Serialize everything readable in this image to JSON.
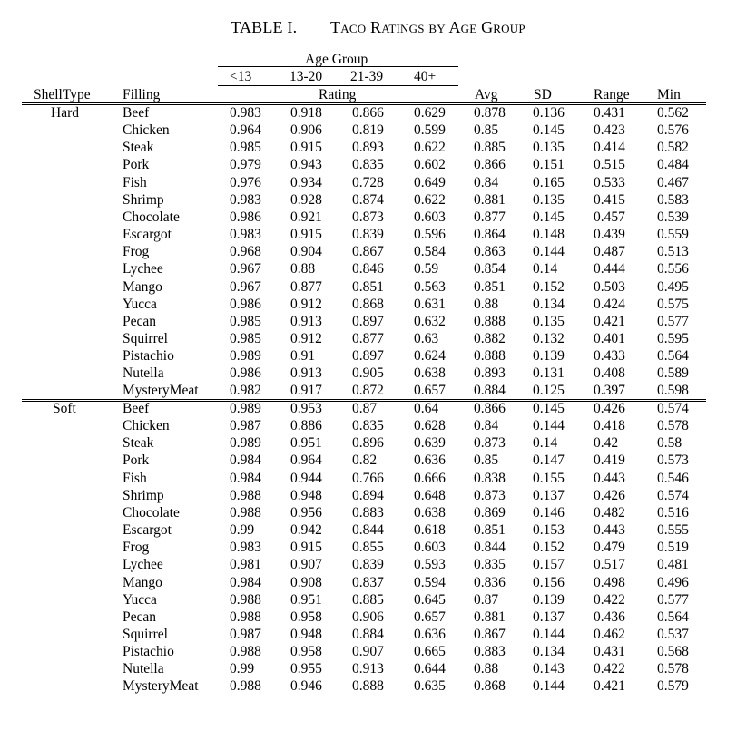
{
  "caption": {
    "number": "TABLE I.",
    "title": "Taco Ratings by Age Group"
  },
  "header": {
    "group_label": "Age Group",
    "age_groups": [
      "<13",
      "13-20",
      "21-39",
      "40+"
    ],
    "shell_type": "ShellType",
    "filling": "Filling",
    "rating": "Rating",
    "stats": [
      "Avg",
      "SD",
      "Range",
      "Min"
    ]
  },
  "groups": [
    {
      "shell": "Hard",
      "rows": [
        {
          "filling": "Beef",
          "vals": [
            "0.983",
            "0.918",
            "0.866",
            "0.629",
            "0.878",
            "0.136",
            "0.431",
            "0.562"
          ]
        },
        {
          "filling": "Chicken",
          "vals": [
            "0.964",
            "0.906",
            "0.819",
            "0.599",
            "0.85",
            "0.145",
            "0.423",
            "0.576"
          ]
        },
        {
          "filling": "Steak",
          "vals": [
            "0.985",
            "0.915",
            "0.893",
            "0.622",
            "0.885",
            "0.135",
            "0.414",
            "0.582"
          ]
        },
        {
          "filling": "Pork",
          "vals": [
            "0.979",
            "0.943",
            "0.835",
            "0.602",
            "0.866",
            "0.151",
            "0.515",
            "0.484"
          ]
        },
        {
          "filling": "Fish",
          "vals": [
            "0.976",
            "0.934",
            "0.728",
            "0.649",
            "0.84",
            "0.165",
            "0.533",
            "0.467"
          ]
        },
        {
          "filling": "Shrimp",
          "vals": [
            "0.983",
            "0.928",
            "0.874",
            "0.622",
            "0.881",
            "0.135",
            "0.415",
            "0.583"
          ]
        },
        {
          "filling": "Chocolate",
          "vals": [
            "0.986",
            "0.921",
            "0.873",
            "0.603",
            "0.877",
            "0.145",
            "0.457",
            "0.539"
          ]
        },
        {
          "filling": "Escargot",
          "vals": [
            "0.983",
            "0.915",
            "0.839",
            "0.596",
            "0.864",
            "0.148",
            "0.439",
            "0.559"
          ]
        },
        {
          "filling": "Frog",
          "vals": [
            "0.968",
            "0.904",
            "0.867",
            "0.584",
            "0.863",
            "0.144",
            "0.487",
            "0.513"
          ]
        },
        {
          "filling": "Lychee",
          "vals": [
            "0.967",
            "0.88",
            "0.846",
            "0.59",
            "0.854",
            "0.14",
            "0.444",
            "0.556"
          ]
        },
        {
          "filling": "Mango",
          "vals": [
            "0.967",
            "0.877",
            "0.851",
            "0.563",
            "0.851",
            "0.152",
            "0.503",
            "0.495"
          ]
        },
        {
          "filling": "Yucca",
          "vals": [
            "0.986",
            "0.912",
            "0.868",
            "0.631",
            "0.88",
            "0.134",
            "0.424",
            "0.575"
          ]
        },
        {
          "filling": "Pecan",
          "vals": [
            "0.985",
            "0.913",
            "0.897",
            "0.632",
            "0.888",
            "0.135",
            "0.421",
            "0.577"
          ]
        },
        {
          "filling": "Squirrel",
          "vals": [
            "0.985",
            "0.912",
            "0.877",
            "0.63",
            "0.882",
            "0.132",
            "0.401",
            "0.595"
          ]
        },
        {
          "filling": "Pistachio",
          "vals": [
            "0.989",
            "0.91",
            "0.897",
            "0.624",
            "0.888",
            "0.139",
            "0.433",
            "0.564"
          ]
        },
        {
          "filling": "Nutella",
          "vals": [
            "0.986",
            "0.913",
            "0.905",
            "0.638",
            "0.893",
            "0.131",
            "0.408",
            "0.589"
          ]
        },
        {
          "filling": "MysteryMeat",
          "vals": [
            "0.982",
            "0.917",
            "0.872",
            "0.657",
            "0.884",
            "0.125",
            "0.397",
            "0.598"
          ]
        }
      ]
    },
    {
      "shell": "Soft",
      "rows": [
        {
          "filling": "Beef",
          "vals": [
            "0.989",
            "0.953",
            "0.87",
            "0.64",
            "0.866",
            "0.145",
            "0.426",
            "0.574"
          ]
        },
        {
          "filling": "Chicken",
          "vals": [
            "0.987",
            "0.886",
            "0.835",
            "0.628",
            "0.84",
            "0.144",
            "0.418",
            "0.578"
          ]
        },
        {
          "filling": "Steak",
          "vals": [
            "0.989",
            "0.951",
            "0.896",
            "0.639",
            "0.873",
            "0.14",
            "0.42",
            "0.58"
          ]
        },
        {
          "filling": "Pork",
          "vals": [
            "0.984",
            "0.964",
            "0.82",
            "0.636",
            "0.85",
            "0.147",
            "0.419",
            "0.573"
          ]
        },
        {
          "filling": "Fish",
          "vals": [
            "0.984",
            "0.944",
            "0.766",
            "0.666",
            "0.838",
            "0.155",
            "0.443",
            "0.546"
          ]
        },
        {
          "filling": "Shrimp",
          "vals": [
            "0.988",
            "0.948",
            "0.894",
            "0.648",
            "0.873",
            "0.137",
            "0.426",
            "0.574"
          ]
        },
        {
          "filling": "Chocolate",
          "vals": [
            "0.988",
            "0.956",
            "0.883",
            "0.638",
            "0.869",
            "0.146",
            "0.482",
            "0.516"
          ]
        },
        {
          "filling": "Escargot",
          "vals": [
            "0.99",
            "0.942",
            "0.844",
            "0.618",
            "0.851",
            "0.153",
            "0.443",
            "0.555"
          ]
        },
        {
          "filling": "Frog",
          "vals": [
            "0.983",
            "0.915",
            "0.855",
            "0.603",
            "0.844",
            "0.152",
            "0.479",
            "0.519"
          ]
        },
        {
          "filling": "Lychee",
          "vals": [
            "0.981",
            "0.907",
            "0.839",
            "0.593",
            "0.835",
            "0.157",
            "0.517",
            "0.481"
          ]
        },
        {
          "filling": "Mango",
          "vals": [
            "0.984",
            "0.908",
            "0.837",
            "0.594",
            "0.836",
            "0.156",
            "0.498",
            "0.496"
          ]
        },
        {
          "filling": "Yucca",
          "vals": [
            "0.988",
            "0.951",
            "0.885",
            "0.645",
            "0.87",
            "0.139",
            "0.422",
            "0.577"
          ]
        },
        {
          "filling": "Pecan",
          "vals": [
            "0.988",
            "0.958",
            "0.906",
            "0.657",
            "0.881",
            "0.137",
            "0.436",
            "0.564"
          ]
        },
        {
          "filling": "Squirrel",
          "vals": [
            "0.987",
            "0.948",
            "0.884",
            "0.636",
            "0.867",
            "0.144",
            "0.462",
            "0.537"
          ]
        },
        {
          "filling": "Pistachio",
          "vals": [
            "0.988",
            "0.958",
            "0.907",
            "0.665",
            "0.883",
            "0.134",
            "0.431",
            "0.568"
          ]
        },
        {
          "filling": "Nutella",
          "vals": [
            "0.99",
            "0.955",
            "0.913",
            "0.644",
            "0.88",
            "0.143",
            "0.422",
            "0.578"
          ]
        },
        {
          "filling": "MysteryMeat",
          "vals": [
            "0.988",
            "0.946",
            "0.888",
            "0.635",
            "0.868",
            "0.144",
            "0.421",
            "0.579"
          ]
        }
      ]
    }
  ]
}
